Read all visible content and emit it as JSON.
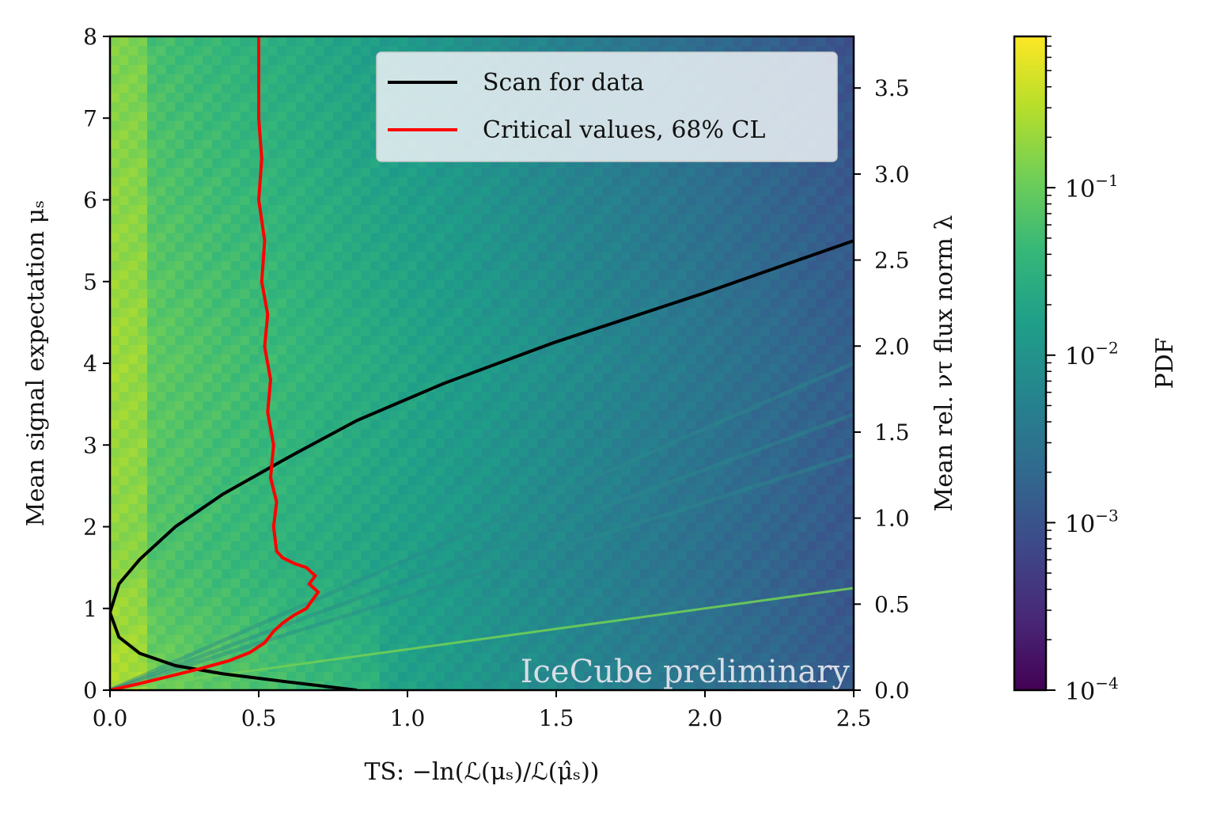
{
  "chart_data": {
    "type": "heatmap",
    "title": "",
    "xlabel": "TS: −ln(ℒ(μₛ)/ℒ(μ̂ₛ))",
    "ylabel": "Mean signal expectation μₛ",
    "y2label": "Mean rel. ντ flux norm λ",
    "colorbar_label": "PDF",
    "watermark": "IceCube preliminary",
    "xlim": [
      0.0,
      2.5
    ],
    "ylim": [
      0,
      8
    ],
    "y2lim": [
      0.0,
      3.8
    ],
    "x_ticks": [
      "0.0",
      "0.5",
      "1.0",
      "1.5",
      "2.0",
      "2.5"
    ],
    "x_tick_values": [
      0.0,
      0.5,
      1.0,
      1.5,
      2.0,
      2.5
    ],
    "y_ticks": [
      "0",
      "1",
      "2",
      "3",
      "4",
      "5",
      "6",
      "7",
      "8"
    ],
    "y_tick_values": [
      0,
      1,
      2,
      3,
      4,
      5,
      6,
      7,
      8
    ],
    "y2_ticks": [
      "0.0",
      "0.5",
      "1.0",
      "1.5",
      "2.0",
      "2.5",
      "3.0",
      "3.5"
    ],
    "y2_tick_values": [
      0.0,
      0.5,
      1.0,
      1.5,
      2.0,
      2.5,
      3.0,
      3.5
    ],
    "colorbar": {
      "scale": "log",
      "range": [
        0.0001,
        0.8
      ],
      "tick_values": [
        0.0001,
        0.001,
        0.01,
        0.1
      ],
      "tick_labels": [
        {
          "base": "10",
          "exp": "−4"
        },
        {
          "base": "10",
          "exp": "−3"
        },
        {
          "base": "10",
          "exp": "−2"
        },
        {
          "base": "10",
          "exp": "−1"
        }
      ],
      "colormap": "viridis",
      "colormap_stops": [
        "#440154",
        "#482878",
        "#3e4989",
        "#31688e",
        "#26828e",
        "#1f9e89",
        "#35b779",
        "#6ece58",
        "#b5de2b",
        "#fde725"
      ]
    },
    "legend": {
      "position": "top-right",
      "entries": [
        {
          "label": "Scan for data",
          "color": "#000000"
        },
        {
          "label": "Critical values, 68% CL",
          "color": "#ff0000"
        }
      ]
    },
    "series": [
      {
        "name": "Scan for data",
        "color": "#000000",
        "x": [
          0.83,
          0.6,
          0.38,
          0.22,
          0.1,
          0.03,
          0.0,
          0.03,
          0.1,
          0.22,
          0.38,
          0.6,
          0.83,
          1.12,
          1.49,
          1.99,
          2.5
        ],
        "y": [
          0.0,
          0.1,
          0.2,
          0.3,
          0.45,
          0.65,
          0.95,
          1.3,
          1.6,
          2.0,
          2.4,
          2.85,
          3.3,
          3.75,
          4.25,
          4.85,
          5.5
        ]
      },
      {
        "name": "Critical values, 68% CL",
        "color": "#ff0000",
        "x": [
          0.0,
          0.1,
          0.2,
          0.3,
          0.4,
          0.47,
          0.52,
          0.55,
          0.58,
          0.62,
          0.66,
          0.68,
          0.7,
          0.67,
          0.69,
          0.66,
          0.62,
          0.58,
          0.56,
          0.55,
          0.56,
          0.54,
          0.55,
          0.53,
          0.54,
          0.52,
          0.53,
          0.51,
          0.52,
          0.5,
          0.51,
          0.5,
          0.5,
          0.5
        ],
        "y": [
          0.0,
          0.08,
          0.17,
          0.26,
          0.36,
          0.46,
          0.58,
          0.72,
          0.82,
          0.92,
          1.0,
          1.1,
          1.2,
          1.3,
          1.4,
          1.5,
          1.55,
          1.62,
          1.7,
          2.0,
          2.3,
          2.6,
          3.0,
          3.4,
          3.8,
          4.2,
          4.6,
          5.0,
          5.5,
          6.0,
          6.5,
          7.0,
          7.5,
          8.0
        ]
      }
    ],
    "heatmap_ridges": [
      {
        "slope_mu_per_ts": 0.5,
        "note": "bright diagonal band"
      },
      {
        "slope_mu_per_ts": 1.15
      },
      {
        "slope_mu_per_ts": 1.35
      },
      {
        "slope_mu_per_ts": 1.6
      }
    ]
  }
}
